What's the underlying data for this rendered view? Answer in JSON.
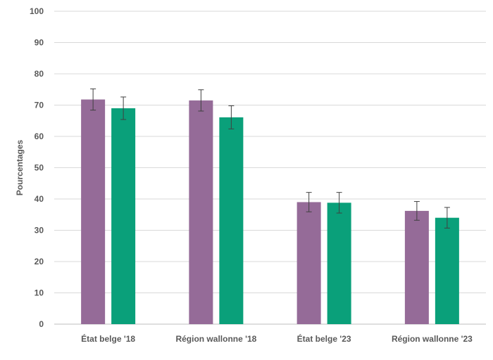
{
  "chart_data": {
    "type": "bar",
    "title": "",
    "xlabel": "",
    "ylabel": "Pourcentages",
    "ylim": [
      0,
      100
    ],
    "yticks": [
      0,
      10,
      20,
      30,
      40,
      50,
      60,
      70,
      80,
      90,
      100
    ],
    "grid": true,
    "legend": "none",
    "categories": [
      "État belge '18",
      "Région wallonne '18",
      "État belge '23",
      "Région wallonne '23"
    ],
    "series": [
      {
        "color": "#956b98",
        "values": [
          71.8,
          71.5,
          39.0,
          36.2
        ],
        "error": [
          3.4,
          3.4,
          3.1,
          3.0
        ]
      },
      {
        "color": "#0aa07a",
        "values": [
          69.0,
          66.1,
          38.8,
          34.0
        ],
        "error": [
          3.6,
          3.7,
          3.3,
          3.3
        ]
      }
    ]
  }
}
